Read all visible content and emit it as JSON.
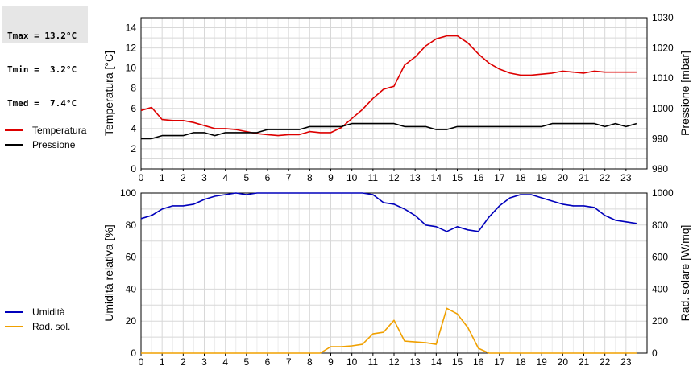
{
  "stats": {
    "tmax": "Tmax = 13.2°C",
    "tmin": "Tmin =  3.2°C",
    "tmed": "Tmed =  7.4°C"
  },
  "colors": {
    "temperatura": "#dd0000",
    "pressione": "#000000",
    "umidita": "#0000bb",
    "rad_sol": "#f0a000",
    "grid": "#d8d8d8"
  },
  "chart_data": [
    {
      "type": "line",
      "ylabel": "Temperatura [°C]",
      "y2label": "Pressione [mbar]",
      "xlim": [
        0,
        24
      ],
      "ylim": [
        0,
        15
      ],
      "y2lim": [
        980,
        1030
      ],
      "xticks": [
        "0",
        "1",
        "2",
        "3",
        "4",
        "5",
        "6",
        "7",
        "8",
        "9",
        "10",
        "11",
        "12",
        "13",
        "14",
        "15",
        "16",
        "17",
        "18",
        "19",
        "20",
        "21",
        "22",
        "23"
      ],
      "yticks": [
        "0",
        "2",
        "4",
        "6",
        "8",
        "10",
        "12",
        "14"
      ],
      "y2ticks": [
        "980",
        "990",
        "1000",
        "1010",
        "1020",
        "1030"
      ],
      "grid": true,
      "legend_position": "left",
      "series": [
        {
          "name": "Temperatura",
          "axis": "left",
          "x": [
            0,
            0.5,
            1,
            1.5,
            2,
            2.5,
            3,
            3.5,
            4,
            4.5,
            5,
            5.5,
            6,
            6.5,
            7,
            7.5,
            8,
            8.5,
            9,
            9.5,
            10,
            10.5,
            11,
            11.5,
            12,
            12.5,
            13,
            13.5,
            14,
            14.5,
            15,
            15.5,
            16,
            16.5,
            17,
            17.5,
            18,
            18.5,
            19,
            19.5,
            20,
            20.5,
            21,
            21.5,
            22,
            22.5,
            23,
            23.5
          ],
          "y": [
            5.8,
            6.1,
            4.9,
            4.8,
            4.8,
            4.6,
            4.3,
            4.0,
            4.0,
            3.9,
            3.7,
            3.5,
            3.4,
            3.3,
            3.4,
            3.4,
            3.7,
            3.6,
            3.6,
            4.1,
            5.0,
            5.9,
            7.0,
            7.9,
            8.2,
            10.3,
            11.1,
            12.2,
            12.9,
            13.2,
            13.2,
            12.5,
            11.4,
            10.5,
            9.9,
            9.5,
            9.3,
            9.3,
            9.4,
            9.5,
            9.7,
            9.6,
            9.5,
            9.7,
            9.6,
            9.6,
            9.6,
            9.6
          ]
        },
        {
          "name": "Pressione",
          "axis": "right",
          "x": [
            0,
            0.5,
            1,
            1.5,
            2,
            2.5,
            3,
            3.5,
            4,
            4.5,
            5,
            5.5,
            6,
            6.5,
            7,
            7.5,
            8,
            8.5,
            9,
            9.5,
            10,
            10.5,
            11,
            11.5,
            12,
            12.5,
            13,
            13.5,
            14,
            14.5,
            15,
            15.5,
            16,
            16.5,
            17,
            17.5,
            18,
            18.5,
            19,
            19.5,
            20,
            20.5,
            21,
            21.5,
            22,
            22.5,
            23,
            23.5
          ],
          "y": [
            990,
            990,
            991,
            991,
            991,
            992,
            992,
            991,
            992,
            992,
            992,
            992,
            993,
            993,
            993,
            993,
            994,
            994,
            994,
            994,
            995,
            995,
            995,
            995,
            995,
            994,
            994,
            994,
            993,
            993,
            994,
            994,
            994,
            994,
            994,
            994,
            994,
            994,
            994,
            995,
            995,
            995,
            995,
            995,
            994,
            995,
            994,
            995
          ]
        }
      ]
    },
    {
      "type": "line",
      "ylabel": "Umidità relativa [%]",
      "y2label": "Rad. solare [W/mq]",
      "xlim": [
        0,
        24
      ],
      "ylim": [
        0,
        100
      ],
      "y2lim": [
        0,
        1000
      ],
      "xticks": [
        "0",
        "1",
        "2",
        "3",
        "4",
        "5",
        "6",
        "7",
        "8",
        "9",
        "10",
        "11",
        "12",
        "13",
        "14",
        "15",
        "16",
        "17",
        "18",
        "19",
        "20",
        "21",
        "22",
        "23"
      ],
      "yticks": [
        "0",
        "20",
        "40",
        "60",
        "80",
        "100"
      ],
      "y2ticks": [
        "0",
        "200",
        "400",
        "600",
        "800",
        "1000"
      ],
      "grid": true,
      "legend_position": "left",
      "series": [
        {
          "name": "Umidità",
          "axis": "left",
          "x": [
            0,
            0.5,
            1,
            1.5,
            2,
            2.5,
            3,
            3.5,
            4,
            4.5,
            5,
            5.5,
            6,
            6.5,
            7,
            7.5,
            8,
            8.5,
            9,
            9.5,
            10,
            10.5,
            11,
            11.5,
            12,
            12.5,
            13,
            13.5,
            14,
            14.5,
            15,
            15.5,
            16,
            16.5,
            17,
            17.5,
            18,
            18.5,
            19,
            19.5,
            20,
            20.5,
            21,
            21.5,
            22,
            22.5,
            23,
            23.5
          ],
          "y": [
            84,
            86,
            90,
            92,
            92,
            93,
            96,
            98,
            99,
            100,
            99,
            100,
            100,
            100,
            100,
            100,
            100,
            100,
            100,
            100,
            100,
            100,
            99,
            94,
            93,
            90,
            86,
            80,
            79,
            76,
            79,
            77,
            76,
            85,
            92,
            97,
            99,
            99,
            97,
            95,
            93,
            92,
            92,
            91,
            86,
            83,
            82,
            81
          ]
        },
        {
          "name": "Rad. sol.",
          "axis": "right",
          "x": [
            0,
            0.5,
            1,
            1.5,
            2,
            2.5,
            3,
            3.5,
            4,
            4.5,
            5,
            5.5,
            6,
            6.5,
            7,
            7.5,
            8,
            8.5,
            9,
            9.5,
            10,
            10.5,
            11,
            11.5,
            12,
            12.5,
            13,
            13.5,
            14,
            14.5,
            15,
            15.5,
            16,
            16.5,
            17,
            17.5,
            18,
            18.5,
            19,
            19.5,
            20,
            20.5,
            21,
            21.5,
            22,
            22.5,
            23,
            23.5
          ],
          "y": [
            0,
            0,
            0,
            0,
            0,
            0,
            0,
            0,
            0,
            0,
            0,
            0,
            0,
            0,
            0,
            0,
            0,
            0,
            40,
            40,
            45,
            55,
            120,
            130,
            205,
            75,
            70,
            65,
            55,
            280,
            245,
            160,
            30,
            0,
            0,
            0,
            0,
            0,
            0,
            0,
            0,
            0,
            0,
            0,
            0,
            0,
            0,
            0
          ]
        }
      ]
    }
  ]
}
